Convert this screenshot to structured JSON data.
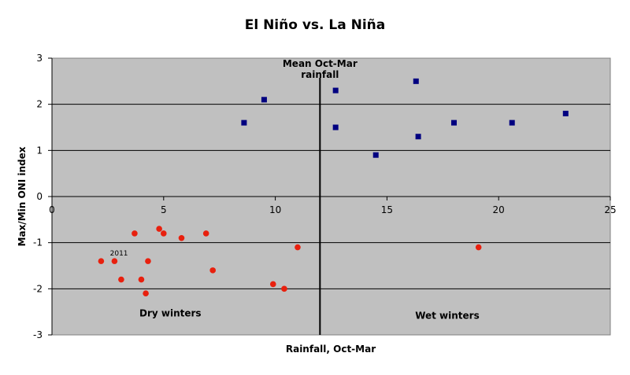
{
  "chart_data": {
    "type": "scatter",
    "title": "El Niño vs. La Niña",
    "xlabel": "Rainfall, Oct-Mar",
    "ylabel": "Max/Min ONI index",
    "xlim": [
      0,
      25
    ],
    "ylim": [
      -3,
      3
    ],
    "x_ticks": [
      "0",
      "5",
      "10",
      "15",
      "20",
      "25"
    ],
    "y_ticks": [
      "3",
      "2",
      "1",
      "0",
      "-1",
      "-2",
      "-3"
    ],
    "grid": true,
    "plot_background": "#c0c0c0",
    "series": [
      {
        "marker": "square",
        "color": "#000080",
        "points": [
          {
            "x": 8.6,
            "y": 1.6
          },
          {
            "x": 9.5,
            "y": 2.1
          },
          {
            "x": 12.7,
            "y": 2.3
          },
          {
            "x": 12.7,
            "y": 1.5
          },
          {
            "x": 14.5,
            "y": 0.9
          },
          {
            "x": 16.3,
            "y": 2.5
          },
          {
            "x": 16.4,
            "y": 1.3
          },
          {
            "x": 18.0,
            "y": 1.6
          },
          {
            "x": 20.6,
            "y": 1.6
          },
          {
            "x": 23.0,
            "y": 1.8
          }
        ]
      },
      {
        "marker": "circle",
        "color": "#e8200e",
        "points": [
          {
            "x": 2.2,
            "y": -1.4
          },
          {
            "x": 2.8,
            "y": -1.4
          },
          {
            "x": 3.1,
            "y": -1.8
          },
          {
            "x": 3.7,
            "y": -0.8
          },
          {
            "x": 4.0,
            "y": -1.8
          },
          {
            "x": 4.2,
            "y": -2.1
          },
          {
            "x": 4.3,
            "y": -1.4
          },
          {
            "x": 4.8,
            "y": -0.7
          },
          {
            "x": 5.0,
            "y": -0.8
          },
          {
            "x": 5.8,
            "y": -0.9
          },
          {
            "x": 6.9,
            "y": -0.8
          },
          {
            "x": 7.2,
            "y": -1.6
          },
          {
            "x": 9.9,
            "y": -1.9
          },
          {
            "x": 10.4,
            "y": -2.0
          },
          {
            "x": 11.0,
            "y": -1.1
          },
          {
            "x": 19.1,
            "y": -1.1
          }
        ]
      }
    ],
    "mean_line": {
      "x": 12.0,
      "label_line1": "Mean Oct-Mar",
      "label_line2": "rainfall"
    },
    "annotations": [
      {
        "text": "2011",
        "x": 3.0,
        "y": -1.28
      },
      {
        "text": "Dry winters",
        "x": 5.3,
        "y": -2.6
      },
      {
        "text": "Wet winters",
        "x": 17.7,
        "y": -2.65
      }
    ]
  }
}
